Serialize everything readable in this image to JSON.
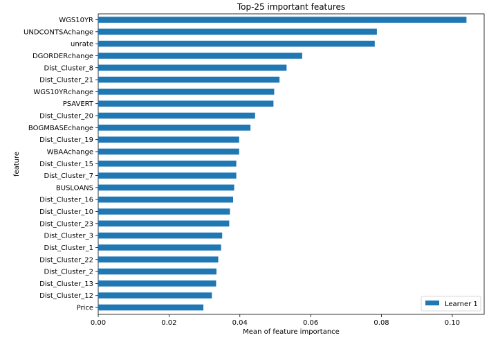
{
  "chart_data": {
    "type": "bar",
    "orientation": "horizontal",
    "title": "Top-25 important features",
    "xlabel": "Mean of feature importance",
    "ylabel": "feature",
    "xlim": [
      0,
      0.109
    ],
    "xticks": [
      0,
      0.02,
      0.04,
      0.06,
      0.08,
      0.1
    ],
    "xtick_labels": [
      "0.00",
      "0.02",
      "0.04",
      "0.06",
      "0.08",
      "0.10"
    ],
    "grid": false,
    "legend_position": "bottom-right",
    "bar_color": "#1f77b4",
    "categories": [
      "WGS10YR",
      "UNDCONTSAchange",
      "unrate",
      "DGORDERchange",
      "Dist_Cluster_8",
      "Dist_Cluster_21",
      "WGS10YRchange",
      "PSAVERT",
      "Dist_Cluster_20",
      "BOGMBASEchange",
      "Dist_Cluster_19",
      "WBAAchange",
      "Dist_Cluster_15",
      "Dist_Cluster_7",
      "BUSLOANS",
      "Dist_Cluster_16",
      "Dist_Cluster_10",
      "Dist_Cluster_23",
      "Dist_Cluster_3",
      "Dist_Cluster_1",
      "Dist_Cluster_22",
      "Dist_Cluster_2",
      "Dist_Cluster_13",
      "Dist_Cluster_12",
      "Price"
    ],
    "series": [
      {
        "name": "Learner 1",
        "values": [
          0.104,
          0.0787,
          0.0781,
          0.0576,
          0.0532,
          0.0512,
          0.0497,
          0.0495,
          0.0443,
          0.043,
          0.0398,
          0.0398,
          0.039,
          0.039,
          0.0384,
          0.0381,
          0.0372,
          0.037,
          0.035,
          0.0347,
          0.0339,
          0.0334,
          0.0333,
          0.0321,
          0.0297
        ]
      }
    ]
  }
}
